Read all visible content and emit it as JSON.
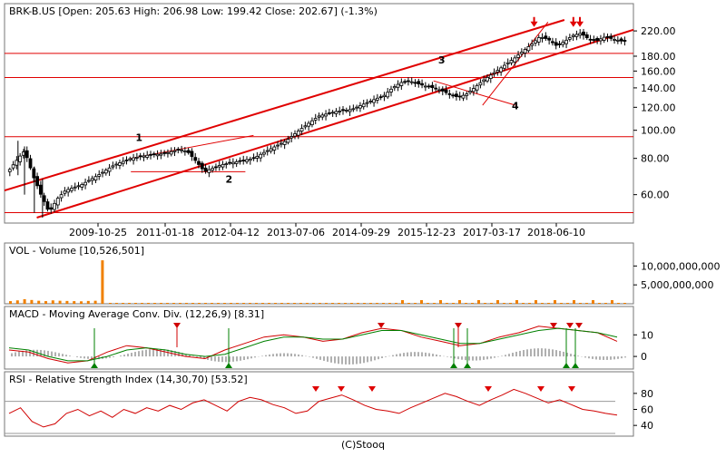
{
  "footer": "(C)Stooq",
  "chart_data": [
    {
      "type": "candlestick",
      "title": "BRK-B.US [Open: 205.63  High: 206.98  Low: 199.42  Close: 202.67]  (-1.3%)",
      "scale": "log",
      "ylim": [
        50,
        240
      ],
      "y_ticks": [
        60,
        80,
        100,
        120,
        140,
        160,
        180,
        220
      ],
      "y_tick_labels": [
        "60.00",
        "80.00",
        "100.00",
        "120.00",
        "140.00",
        "160.00",
        "180.00",
        "220.00"
      ],
      "x_tick_labels": [
        "2009-10-25",
        "2011-01-18",
        "2012-04-12",
        "2013-07-06",
        "2014-09-29",
        "2015-12-23",
        "2017-03-17",
        "2018-06-10"
      ],
      "close_path": [
        [
          0,
          72
        ],
        [
          2,
          85
        ],
        [
          3,
          70
        ],
        [
          4,
          60
        ],
        [
          5,
          52
        ],
        [
          6,
          58
        ],
        [
          7,
          62
        ],
        [
          9,
          65
        ],
        [
          11,
          70
        ],
        [
          13,
          76
        ],
        [
          15,
          80
        ],
        [
          17,
          82
        ],
        [
          19,
          83
        ],
        [
          21,
          86
        ],
        [
          22,
          84
        ],
        [
          23,
          78
        ],
        [
          24,
          72
        ],
        [
          25,
          74
        ],
        [
          26,
          76
        ],
        [
          28,
          78
        ],
        [
          30,
          80
        ],
        [
          32,
          86
        ],
        [
          34,
          92
        ],
        [
          36,
          102
        ],
        [
          38,
          112
        ],
        [
          40,
          116
        ],
        [
          42,
          118
        ],
        [
          44,
          125
        ],
        [
          46,
          132
        ],
        [
          47,
          140
        ],
        [
          48,
          146
        ],
        [
          49,
          148
        ],
        [
          50,
          145
        ],
        [
          51,
          142
        ],
        [
          52,
          140
        ],
        [
          53,
          137
        ],
        [
          54,
          133
        ],
        [
          55,
          130
        ],
        [
          56,
          133
        ],
        [
          57,
          140
        ],
        [
          58,
          148
        ],
        [
          59,
          155
        ],
        [
          60,
          162
        ],
        [
          61,
          170
        ],
        [
          62,
          178
        ],
        [
          63,
          188
        ],
        [
          64,
          198
        ],
        [
          65,
          210
        ],
        [
          66,
          206
        ],
        [
          67,
          196
        ],
        [
          68,
          202
        ],
        [
          69,
          212
        ],
        [
          70,
          216
        ],
        [
          71,
          206
        ],
        [
          72,
          204
        ],
        [
          73,
          210
        ],
        [
          74,
          206
        ],
        [
          75,
          203
        ]
      ],
      "annotations": [
        {
          "label": "1",
          "x": 16,
          "y": 92
        },
        {
          "label": "2",
          "x": 27,
          "y": 66
        },
        {
          "label": "3",
          "x": 53,
          "y": 170
        },
        {
          "label": "4",
          "x": 62,
          "y": 118
        }
      ],
      "horizontal_lines": [
        52,
        95,
        152,
        184
      ]
    },
    {
      "type": "bar",
      "title": "VOL - Volume [10,526,501]",
      "ylim": [
        0,
        12000000000
      ],
      "y_ticks": [
        5000000000,
        10000000000
      ],
      "y_tick_labels": [
        "5,000,000,000",
        "10,000,000,000"
      ],
      "values": [
        700000000,
        900000000,
        1200000000,
        1000000000,
        800000000,
        700000000,
        900000000,
        800000000,
        750000000,
        700000000,
        650000000,
        750000000,
        800000000,
        11500000000
      ]
    },
    {
      "type": "line",
      "title": "MACD - Moving Average Conv. Div. (12,26,9) [8.31]",
      "ylim": [
        -5,
        16
      ],
      "y_ticks": [
        0,
        10
      ],
      "y_tick_labels": [
        "0",
        "10"
      ],
      "series": [
        {
          "values": [
            3,
            2,
            -1,
            -3,
            -2,
            2,
            5,
            4,
            2,
            0,
            -1,
            3,
            6,
            9,
            10,
            9,
            7,
            8,
            11,
            13,
            12,
            9,
            7,
            5,
            6,
            9,
            11,
            14,
            13,
            12,
            11,
            7
          ]
        },
        {
          "values": [
            4,
            3,
            0,
            -2,
            -2,
            0,
            3,
            4,
            3,
            1,
            0,
            1,
            4,
            7,
            9,
            9,
            8,
            8,
            10,
            12,
            12,
            10,
            8,
            6,
            6,
            8,
            10,
            12,
            13,
            12,
            11,
            9
          ]
        }
      ]
    },
    {
      "type": "line",
      "title": "RSI - Relative Strength Index (14,30,70) [53.52]",
      "ylim": [
        30,
        90
      ],
      "y_ticks": [
        40,
        60,
        80
      ],
      "y_tick_labels": [
        "40",
        "60",
        "80"
      ],
      "reference_lines": [
        30,
        70
      ],
      "series": [
        {
          "values": [
            55,
            62,
            45,
            38,
            42,
            55,
            60,
            52,
            58,
            50,
            60,
            55,
            62,
            58,
            65,
            60,
            68,
            72,
            65,
            58,
            70,
            75,
            72,
            66,
            62,
            55,
            58,
            70,
            74,
            78,
            72,
            65,
            60,
            58,
            55,
            62,
            68,
            74,
            80,
            76,
            70,
            65,
            72,
            78,
            85,
            80,
            74,
            68,
            72,
            66,
            60,
            58,
            55,
            53
          ]
        }
      ]
    }
  ]
}
